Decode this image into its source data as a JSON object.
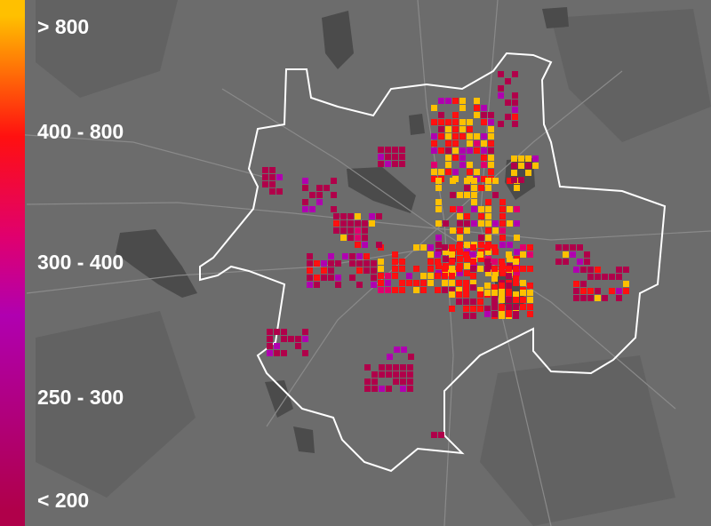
{
  "legend": {
    "items": [
      {
        "label": "> 800",
        "color": "#ffc000"
      },
      {
        "label": "400 - 800",
        "color": "#ff1010"
      },
      {
        "label": "300 - 400",
        "color": "#e0006e"
      },
      {
        "label": "250 - 300",
        "color": "#b000b0"
      },
      {
        "label": "< 200",
        "color": "#b0004a"
      }
    ]
  }
}
